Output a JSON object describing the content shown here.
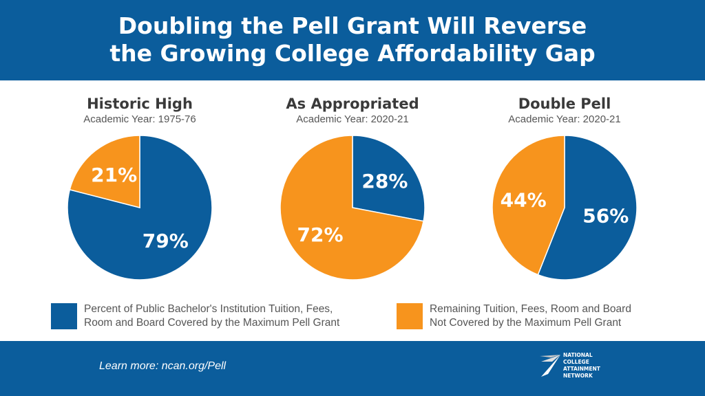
{
  "header": {
    "title_line1": "Doubling the Pell Grant Will Reverse",
    "title_line2": "the Growing College Affordability Gap"
  },
  "colors": {
    "blue": "#0b5d9c",
    "orange": "#f7941d"
  },
  "chart_data": [
    {
      "type": "pie",
      "title": "Historic High",
      "subtitle": "Academic Year: 1975-76",
      "slices": [
        {
          "label": "79%",
          "value": 79,
          "color": "#0b5d9c"
        },
        {
          "label": "21%",
          "value": 21,
          "color": "#f7941d"
        }
      ]
    },
    {
      "type": "pie",
      "title": "As Appropriated",
      "subtitle": "Academic Year: 2020-21",
      "slices": [
        {
          "label": "28%",
          "value": 28,
          "color": "#0b5d9c"
        },
        {
          "label": "72%",
          "value": 72,
          "color": "#f7941d"
        }
      ]
    },
    {
      "type": "pie",
      "title": "Double Pell",
      "subtitle": "Academic Year: 2020-21",
      "slices": [
        {
          "label": "56%",
          "value": 56,
          "color": "#0b5d9c"
        },
        {
          "label": "44%",
          "value": 44,
          "color": "#f7941d"
        }
      ]
    }
  ],
  "legend": [
    {
      "text": "Percent of Public Bachelor's Institution Tuition, Fees,\nRoom and Board Covered by the Maximum Pell Grant",
      "color": "#0b5d9c"
    },
    {
      "text": "Remaining Tuition, Fees, Room and Board\nNot Covered by the Maximum Pell Grant",
      "color": "#f7941d"
    }
  ],
  "footer": {
    "link": "Learn more: ncan.org/Pell",
    "logo_text": "NATIONAL\nCOLLEGE\nATTAINMENT\nNETWORK"
  }
}
